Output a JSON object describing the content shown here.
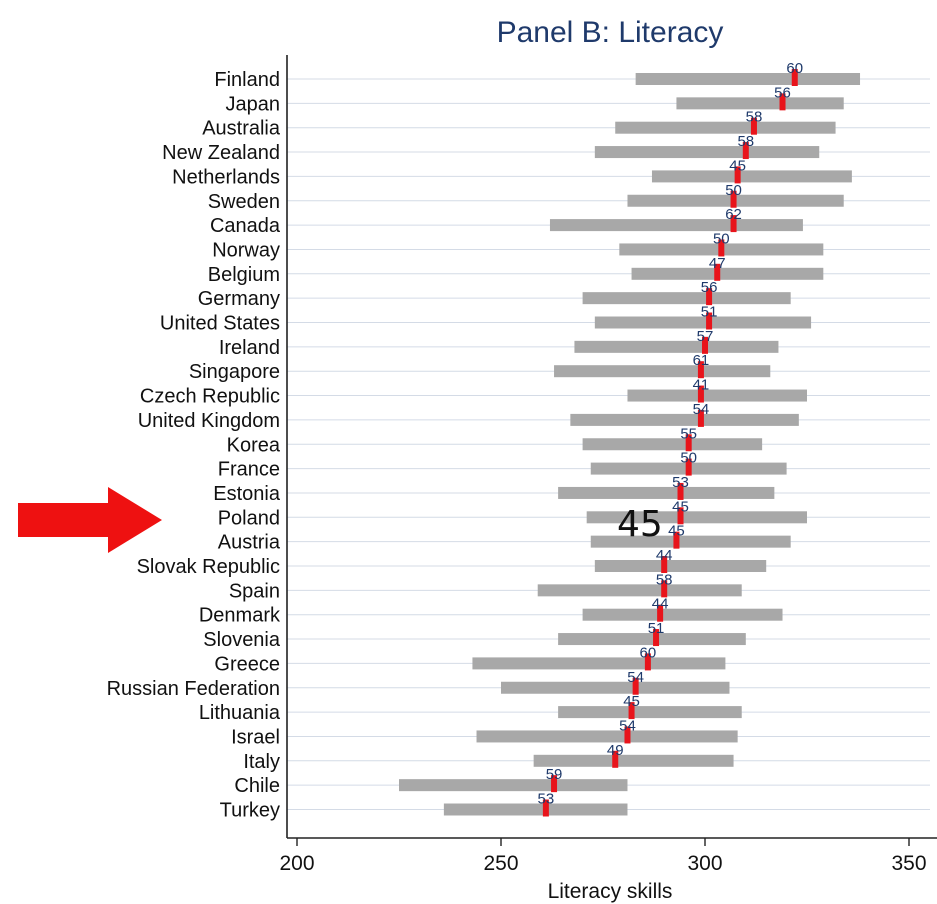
{
  "chart_data": {
    "type": "range-bar",
    "title": "Panel B: Literacy",
    "xlabel": "Literacy skills",
    "xlim": [
      200,
      350
    ],
    "xticks": [
      200,
      250,
      300,
      350
    ],
    "grid": true,
    "colors": {
      "range_bar": "#a8a8a8",
      "mean_marker": "#e8141b",
      "title": "#1f3a6b",
      "label": "#1f3a6b",
      "arrow": "#ee1111",
      "grid": "#d4dbe6"
    },
    "categories": [
      "Finland",
      "Japan",
      "Australia",
      "New Zealand",
      "Netherlands",
      "Sweden",
      "Canada",
      "Norway",
      "Belgium",
      "Germany",
      "United States",
      "Ireland",
      "Singapore",
      "Czech Republic",
      "United Kingdom",
      "Korea",
      "France",
      "Estonia",
      "Poland",
      "Austria",
      "Slovak Republic",
      "Spain",
      "Denmark",
      "Slovenia",
      "Greece",
      "Russian Federation",
      "Lithuania",
      "Israel",
      "Italy",
      "Chile",
      "Turkey"
    ],
    "series": [
      {
        "name": "low",
        "values": [
          283,
          293,
          278,
          273,
          287,
          281,
          262,
          279,
          282,
          270,
          273,
          268,
          263,
          281,
          267,
          270,
          272,
          264,
          271,
          272,
          273,
          259,
          270,
          264,
          243,
          250,
          264,
          244,
          258,
          225,
          236
        ]
      },
      {
        "name": "high",
        "values": [
          338,
          334,
          332,
          328,
          336,
          334,
          324,
          329,
          329,
          321,
          326,
          318,
          316,
          325,
          323,
          314,
          320,
          317,
          325,
          321,
          315,
          309,
          319,
          310,
          305,
          306,
          309,
          308,
          307,
          281,
          281
        ]
      },
      {
        "name": "mean",
        "values": [
          322,
          319,
          312,
          310,
          308,
          307,
          307,
          304,
          303,
          301,
          301,
          300,
          299,
          299,
          299,
          296,
          296,
          294,
          294,
          293,
          290,
          290,
          289,
          288,
          286,
          283,
          282,
          281,
          278,
          263,
          261
        ]
      },
      {
        "name": "label",
        "values": [
          60,
          56,
          58,
          58,
          45,
          50,
          62,
          50,
          47,
          56,
          51,
          57,
          61,
          41,
          54,
          55,
          50,
          53,
          45,
          45,
          44,
          58,
          44,
          51,
          60,
          54,
          45,
          54,
          49,
          59,
          53
        ]
      }
    ]
  },
  "annotation": {
    "callout_value": "45",
    "arrow_target": "Poland"
  }
}
